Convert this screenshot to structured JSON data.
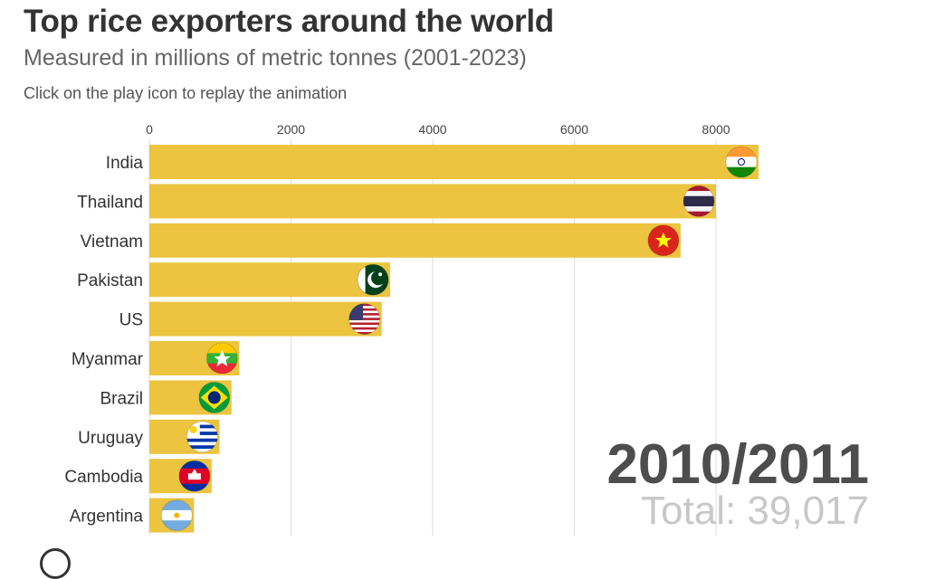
{
  "header": {
    "title": "Top rice exporters around the world",
    "subtitle": "Measured in millions of metric tonnes (2001-2023)",
    "note": "Click on the play icon to replay the animation"
  },
  "chart_data": {
    "type": "bar",
    "orientation": "horizontal",
    "categories": [
      "India",
      "Thailand",
      "Vietnam",
      "Pakistan",
      "US",
      "Myanmar",
      "Brazil",
      "Uruguay",
      "Cambodia",
      "Argentina"
    ],
    "values": [
      8600,
      8000,
      7500,
      3400,
      3280,
      1270,
      1160,
      990,
      880,
      630
    ],
    "xlim": [
      0,
      8600
    ],
    "xticks": [
      0,
      2000,
      4000,
      6000,
      8000
    ],
    "xtick_labels": [
      "0",
      "2000",
      "4000",
      "6000",
      "8000"
    ],
    "grid": true,
    "bar_color": "#ECC440",
    "flags": [
      "india-flag",
      "thailand-flag",
      "vietnam-flag",
      "pakistan-flag",
      "us-flag",
      "myanmar-flag",
      "brazil-flag",
      "uruguay-flag",
      "cambodia-flag",
      "argentina-flag"
    ],
    "period": "2010/2011",
    "total": "Total: 39,017"
  },
  "controls": {
    "play_icon": "play-icon"
  }
}
